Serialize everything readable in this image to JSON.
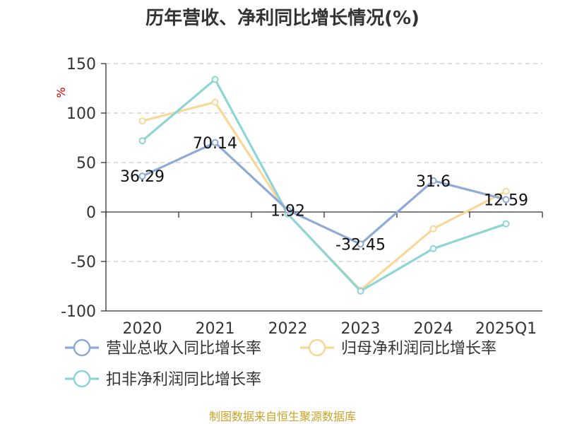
{
  "chart_data": {
    "type": "line",
    "title": "历年营收、净利同比增长情况(%)",
    "ylabel": "%",
    "xlabel": "",
    "categories": [
      "2020",
      "2021",
      "2022",
      "2023",
      "2024",
      "2025Q1"
    ],
    "ylim": [
      -100,
      150
    ],
    "yticks": [
      150,
      100,
      50,
      0,
      -50,
      -100
    ],
    "grid": true,
    "legend_position": "bottom-left",
    "series": [
      {
        "name": "营业总收入同比增长率",
        "values": [
          36.29,
          70.14,
          1.92,
          -32.45,
          31.6,
          12.59
        ],
        "labels": [
          "36.29",
          "70.14",
          "1.92",
          "-32.45",
          "31.6",
          "12.59"
        ],
        "color": "#8eaad6"
      },
      {
        "name": "归母净利润同比增长率",
        "values": [
          92,
          111,
          -2,
          -79,
          -17,
          21
        ],
        "color": "#f8d89a"
      },
      {
        "name": "扣非净利润同比增长率",
        "values": [
          72,
          134,
          -2,
          -80,
          -37,
          -12
        ],
        "color": "#8fd5d5"
      }
    ]
  },
  "source": "制图数据来自恒生聚源数据库"
}
